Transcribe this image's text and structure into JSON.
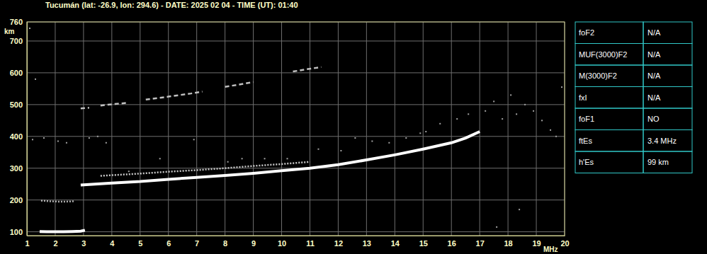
{
  "chart_data": {
    "type": "line",
    "title": "Tucumán (lat: -26.9, lon: 294.6) - DATE: 2025 02 04 - TIME (UT): 01:40",
    "x_label": "MHz",
    "y_label": "km",
    "xlim": [
      1,
      20
    ],
    "ylim": [
      88,
      760
    ],
    "xticks": [
      1,
      2,
      3,
      4,
      5,
      6,
      7,
      8,
      9,
      10,
      11,
      12,
      13,
      14,
      15,
      16,
      17,
      18,
      19,
      20
    ],
    "yticks": [
      100,
      200,
      300,
      400,
      500,
      600,
      700,
      760
    ],
    "grid": true,
    "series": [
      {
        "type": "line",
        "color": "#ffffff",
        "line_style": "solid",
        "x": [
          1.45,
          1.7,
          2.0,
          2.3,
          2.6,
          2.9,
          3.05
        ],
        "values": [
          101,
          100,
          100,
          100,
          101,
          102,
          105
        ]
      },
      {
        "type": "line",
        "color": "#b0b0b0",
        "line_style": "dotted",
        "x": [
          1.5,
          1.8,
          2.1,
          2.4,
          2.7
        ],
        "values": [
          198,
          196,
          195,
          195,
          196
        ]
      },
      {
        "type": "line",
        "color": "#ffffff",
        "line_style": "solid",
        "x": [
          2.9,
          4,
          5,
          6,
          7,
          8,
          9,
          10,
          11,
          12,
          13,
          14,
          15,
          16,
          16.5,
          17
        ],
        "values": [
          247,
          253,
          258,
          265,
          271,
          277,
          284,
          292,
          300,
          311,
          326,
          342,
          360,
          380,
          395,
          415
        ]
      },
      {
        "type": "line",
        "color": "#c8c8c8",
        "line_style": "dotted",
        "x": [
          3.6,
          4,
          5,
          6,
          7,
          8,
          9,
          10,
          11
        ],
        "values": [
          276,
          278,
          283,
          289,
          294,
          300,
          307,
          313,
          320
        ]
      },
      {
        "type": "line",
        "color": "#c0c0c0",
        "line_style": "dashed",
        "x": [
          2.9,
          3.2,
          3.5,
          3.6,
          4.0,
          4.5,
          4.9,
          5.2,
          6.0,
          6.8,
          7.2,
          7.6,
          8.0,
          8.5,
          9.0,
          9.4,
          10.4,
          10.8,
          11.4
        ],
        "values": [
          488,
          490,
          null,
          497,
          501,
          505,
          null,
          516,
          525,
          535,
          541,
          null,
          556,
          563,
          571,
          null,
          604,
          610,
          618
        ]
      },
      {
        "type": "scatter",
        "color": "#a0a0a0",
        "marker": "square",
        "x": [
          1.1,
          1.3,
          1.2,
          1.6,
          2.1,
          2.4,
          3.2,
          3.5,
          3.8,
          4.6,
          5.7,
          6.9,
          8.1,
          8.6,
          9.4,
          10.2,
          11.3,
          12.1,
          12.6,
          13.2,
          13.8,
          14.4,
          15.1,
          15.6,
          16.2,
          16.6,
          17.2,
          17.5,
          17.8,
          18.1,
          18.3,
          18.6,
          18.9,
          19.2,
          19.5,
          19.7,
          18.4,
          17.6,
          19.9,
          14.9
        ],
        "values": [
          740,
          580,
          390,
          395,
          385,
          380,
          395,
          400,
          380,
          290,
          330,
          390,
          320,
          330,
          330,
          330,
          360,
          355,
          395,
          385,
          380,
          395,
          415,
          440,
          455,
          470,
          480,
          510,
          455,
          530,
          470,
          500,
          480,
          450,
          420,
          400,
          170,
          115,
          555,
          410
        ]
      }
    ]
  },
  "table": {
    "rows": [
      [
        "foF2",
        "N/A"
      ],
      [
        "MUF(3000)F2",
        "N/A"
      ],
      [
        "M(3000)F2",
        "N/A"
      ],
      [
        "fxI",
        "N/A"
      ],
      [
        "foF1",
        "NO"
      ],
      [
        "ftEs",
        "3.4 MHz"
      ],
      [
        "h'Es",
        "99 km"
      ]
    ]
  }
}
